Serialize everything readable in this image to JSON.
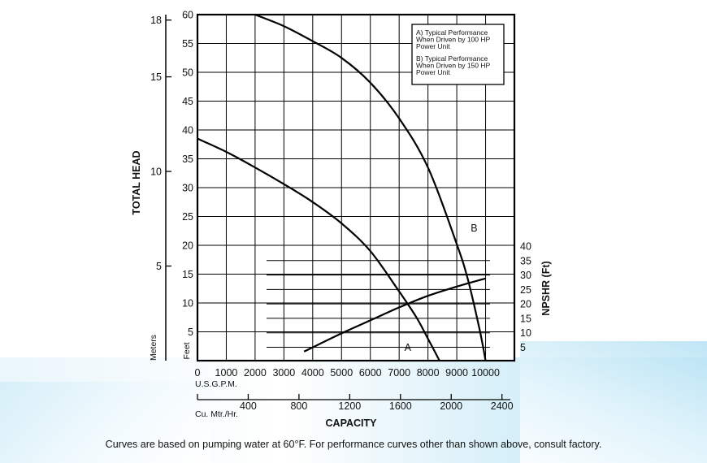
{
  "chart_data": {
    "type": "line",
    "title": "",
    "legend": {
      "placement": "top-right",
      "entries": [
        {
          "key": "A",
          "lines": [
            "A) Typical Performance",
            "When Driven by 100 HP",
            "Power Unit"
          ]
        },
        {
          "key": "B",
          "lines": [
            "B) Typical Performance",
            "When Driven by 150 HP",
            "Power Unit"
          ]
        }
      ]
    },
    "xlabel": "CAPACITY",
    "x_units": {
      "gpm": "U.S.G.P.M.",
      "cmh": "Cu. Mtr./Hr."
    },
    "xlim": [
      0,
      11000
    ],
    "x_ticks_gpm": [
      0,
      1000,
      2000,
      3000,
      4000,
      5000,
      6000,
      7000,
      8000,
      9000,
      10000
    ],
    "x_ticks_cmh": [
      400,
      800,
      1200,
      1600,
      2000,
      2400
    ],
    "ylabel": "TOTAL HEAD",
    "y_units": {
      "feet": "Feet",
      "meters": "Meters"
    },
    "ylim_feet": [
      0,
      60
    ],
    "y_ticks_feet": [
      5,
      10,
      15,
      20,
      25,
      30,
      35,
      40,
      45,
      50,
      55,
      60
    ],
    "y_ticks_meters": [
      5,
      10,
      15,
      18
    ],
    "y2label": "NPSHR (Ft)",
    "y2lim": [
      0,
      40
    ],
    "y2_ticks": [
      5,
      10,
      15,
      20,
      25,
      30,
      35,
      40
    ],
    "grid": true,
    "series": [
      {
        "name": "A",
        "axis": "head",
        "x": [
          0,
          1000,
          2000,
          3000,
          4000,
          5000,
          6000,
          7000,
          7600,
          8000,
          8400
        ],
        "y": [
          38.5,
          36.2,
          33.5,
          30.6,
          27.5,
          23.8,
          19.0,
          12.0,
          7.5,
          3.8,
          0
        ]
      },
      {
        "name": "B",
        "axis": "head",
        "x": [
          2000,
          3000,
          4000,
          5000,
          6000,
          7000,
          8000,
          9000,
          9400,
          9800,
          10000
        ],
        "y": [
          60,
          58,
          55.4,
          52.5,
          48.2,
          42.0,
          33.5,
          20.2,
          13.8,
          5.2,
          0
        ]
      },
      {
        "name": "",
        "axis": "npshr",
        "x": [
          3700,
          5000,
          6000,
          7000,
          8000,
          9000,
          10000
        ],
        "y": [
          3.5,
          9.8,
          14.3,
          18.8,
          22.8,
          26.0,
          28.8
        ]
      }
    ],
    "annotations": [
      {
        "text": "A",
        "x": 7300,
        "y": 2.3
      },
      {
        "text": "B",
        "x": 9600,
        "y": 23.0
      }
    ]
  },
  "footnote": "Curves are based on pumping water at 60°F. For performance curves other than shown above, consult factory."
}
